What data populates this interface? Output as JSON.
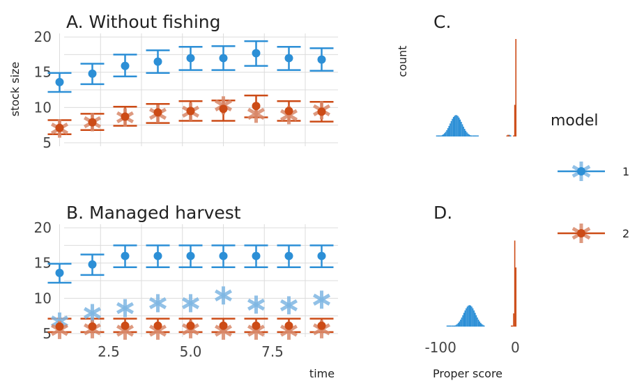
{
  "colors": {
    "model1": "#2c8fd6",
    "model2": "#cc4b16",
    "star1": "#7fb7e3",
    "star2": "#d9896a",
    "grid": "#dcdcdc"
  },
  "legend": {
    "title": "model",
    "items": [
      {
        "label": "1"
      },
      {
        "label": "2"
      }
    ]
  },
  "chart_data": [
    {
      "id": "A",
      "type": "scatter",
      "title": "A. Without fishing",
      "xlabel": "",
      "ylabel": "stock size",
      "xlim": [
        0.5,
        9.5
      ],
      "ylim": [
        4.5,
        20.5
      ],
      "yticks": [
        "5",
        "10",
        "15",
        "20"
      ],
      "xticks": [],
      "series": [
        {
          "model": "1",
          "x": [
            1,
            2,
            3,
            4,
            5,
            6,
            7,
            8,
            9
          ],
          "y": [
            13.6,
            14.8,
            15.9,
            16.5,
            17.0,
            17.0,
            17.7,
            17.0,
            16.8
          ],
          "lower": [
            12.2,
            13.3,
            14.4,
            14.9,
            15.3,
            15.3,
            15.9,
            15.3,
            15.2
          ],
          "upper": [
            14.9,
            16.2,
            17.5,
            18.1,
            18.6,
            18.7,
            19.4,
            18.6,
            18.4
          ]
        },
        {
          "model": "2",
          "x": [
            1,
            2,
            3,
            4,
            5,
            6,
            7,
            8,
            9
          ],
          "y": [
            7.1,
            7.9,
            8.7,
            9.3,
            9.5,
            9.8,
            10.2,
            9.5,
            9.4
          ],
          "lower": [
            6.2,
            6.8,
            7.4,
            7.8,
            8.1,
            8.1,
            8.6,
            8.1,
            8.0
          ],
          "upper": [
            8.2,
            9.1,
            10.1,
            10.5,
            10.9,
            11.0,
            11.7,
            10.9,
            10.8
          ]
        }
      ],
      "observed": {
        "x": [
          1,
          2,
          3,
          4,
          5,
          6,
          7,
          8,
          9
        ],
        "y": [
          7.0,
          7.9,
          8.6,
          9.1,
          9.4,
          10.3,
          9.1,
          8.9,
          9.6
        ]
      }
    },
    {
      "id": "B",
      "type": "scatter",
      "title": "B. Managed harvest",
      "xlabel": "time",
      "ylabel": "",
      "xlim": [
        0.5,
        9.5
      ],
      "ylim": [
        4.5,
        20.5
      ],
      "yticks": [
        "5",
        "10",
        "15",
        "20"
      ],
      "xticks": [
        "2.5",
        "5.0",
        "7.5"
      ],
      "xtick_values": [
        2.5,
        5.0,
        7.5
      ],
      "series": [
        {
          "model": "1",
          "x": [
            1,
            2,
            3,
            4,
            5,
            6,
            7,
            8,
            9
          ],
          "y": [
            13.6,
            14.8,
            16.0,
            16.0,
            16.0,
            16.0,
            16.0,
            16.0,
            16.0
          ],
          "lower": [
            12.2,
            13.3,
            14.4,
            14.4,
            14.4,
            14.4,
            14.4,
            14.4,
            14.4
          ],
          "upper": [
            14.9,
            16.2,
            17.5,
            17.5,
            17.5,
            17.5,
            17.5,
            17.5,
            17.5
          ]
        },
        {
          "model": "2",
          "x": [
            1,
            2,
            3,
            4,
            5,
            6,
            7,
            8,
            9
          ],
          "y": [
            6.0,
            6.0,
            6.1,
            6.1,
            6.1,
            6.1,
            6.1,
            6.1,
            6.1
          ],
          "lower": [
            5.2,
            5.2,
            5.2,
            5.2,
            5.2,
            5.2,
            5.2,
            5.2,
            5.2
          ],
          "upper": [
            7.1,
            7.1,
            7.1,
            7.1,
            7.1,
            7.1,
            7.1,
            7.1,
            7.1
          ]
        }
      ],
      "observed_model1": {
        "x": [
          1,
          2,
          3,
          4,
          5,
          6,
          7,
          8,
          9
        ],
        "y": [
          6.7,
          7.9,
          8.6,
          9.3,
          9.3,
          10.4,
          9.1,
          9.0,
          9.8
        ]
      },
      "observed_model2": {
        "x": [
          1,
          2,
          3,
          4,
          5,
          6,
          7,
          8,
          9
        ],
        "y": [
          5.5,
          5.6,
          5.4,
          5.4,
          5.6,
          5.4,
          5.4,
          5.4,
          5.6
        ]
      }
    },
    {
      "id": "C",
      "type": "bar",
      "title": "C.",
      "xlabel": "",
      "ylabel": "count",
      "xlim": [
        -130,
        8
      ],
      "series": [
        {
          "model": "1",
          "center": -80,
          "spread": 8,
          "range": [
            -106,
            -50
          ],
          "peak_share": 0.22
        },
        {
          "model": "1",
          "center": -8,
          "spread": 1,
          "range": [
            -10,
            -6
          ],
          "peak_share": 0.02
        },
        {
          "model": "2",
          "center": -10,
          "spread": 1,
          "range": [
            -12,
            -9
          ],
          "peak_share": 0.02
        },
        {
          "model": "2",
          "center": 0,
          "spread": 1,
          "range": [
            -3,
            0
          ],
          "peak_share": 1.0
        }
      ]
    },
    {
      "id": "D",
      "type": "bar",
      "title": "D.",
      "xlabel": "Proper score",
      "ylabel": "",
      "xlim": [
        -130,
        8
      ],
      "xticks": [
        "-100",
        "0"
      ],
      "xtick_values": [
        -100,
        0
      ],
      "series": [
        {
          "model": "1",
          "center": -62,
          "spread": 8,
          "range": [
            -92,
            -42
          ],
          "peak_share": 0.22
        },
        {
          "model": "2",
          "center": -1,
          "spread": 1,
          "range": [
            -6,
            0
          ],
          "peak_share": 1.0
        }
      ]
    }
  ]
}
